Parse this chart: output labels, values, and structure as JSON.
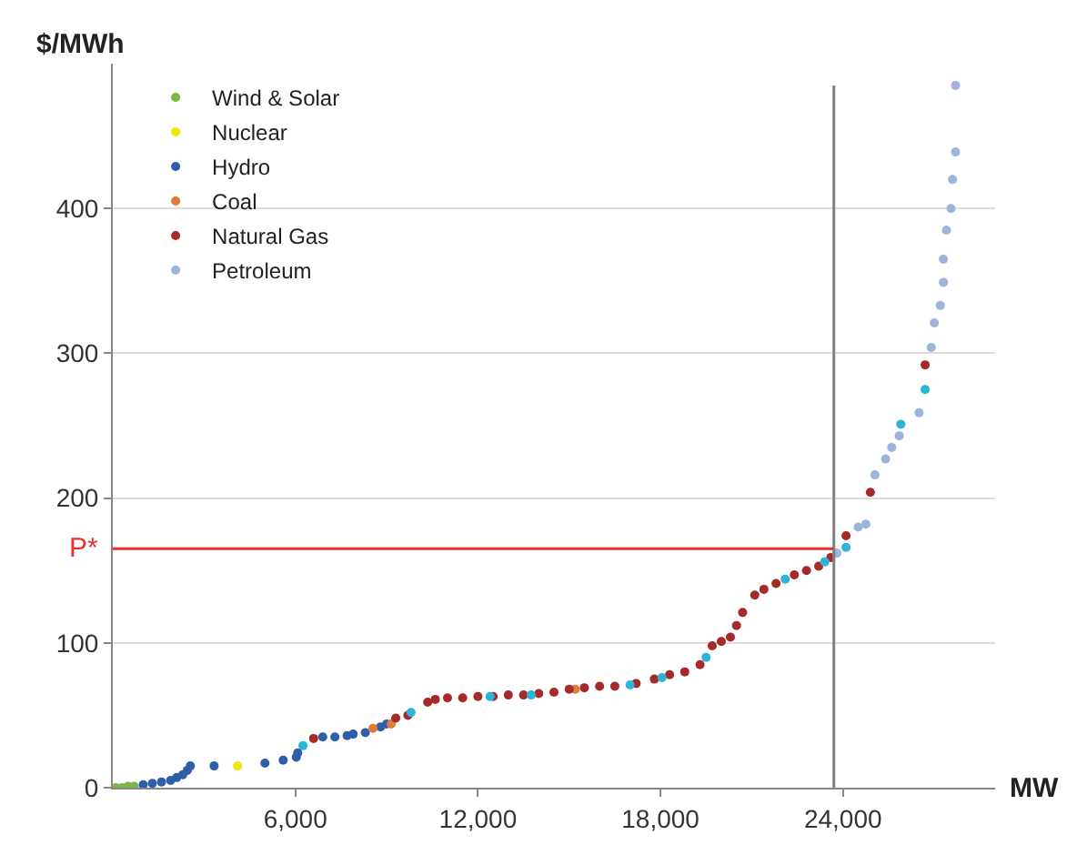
{
  "chart_data": {
    "type": "scatter",
    "xlabel": "MW",
    "ylabel": "$/MWh",
    "xlim": [
      0,
      29000
    ],
    "ylim": [
      0,
      500
    ],
    "xticks": [
      {
        "value": 6000,
        "label": "6,000"
      },
      {
        "value": 12000,
        "label": "12,000"
      },
      {
        "value": 18000,
        "label": "18,000"
      },
      {
        "value": 24000,
        "label": "24,000"
      }
    ],
    "yticks": [
      0,
      100,
      200,
      300,
      400
    ],
    "grid": "y",
    "legend": "top left",
    "marker": "circle",
    "ref_lines": [
      {
        "axis": "x",
        "value": 23700,
        "label": null,
        "color": "#808080"
      },
      {
        "axis": "y",
        "value": 165,
        "label": "P*",
        "color": "#e8302a"
      }
    ],
    "series": [
      {
        "name": "Wind & Solar",
        "color": "#7ab648",
        "x": [
          100,
          300,
          500,
          700
        ],
        "values": [
          0,
          0,
          1,
          1
        ]
      },
      {
        "name": "Nuclear",
        "color": "#f2e600",
        "x": [
          4100
        ],
        "values": [
          15
        ]
      },
      {
        "name": "Hydro",
        "color": "#2e5ea8",
        "x": [
          1000,
          1300,
          1600,
          1900,
          2100,
          2300,
          2450,
          2550,
          3330,
          5000,
          5600,
          6030,
          6080,
          6900,
          7300,
          7700,
          7900,
          8300,
          8800,
          9000
        ],
        "values": [
          2,
          3,
          4,
          5,
          7,
          9,
          12,
          15,
          15,
          17,
          19,
          21,
          24,
          35,
          35,
          36,
          37,
          38,
          42,
          44
        ]
      },
      {
        "name": "Coal",
        "color": "#e07b39",
        "x": [
          8550,
          9150,
          15200
        ],
        "values": [
          41,
          44,
          68
        ]
      },
      {
        "name": "Natural Gas",
        "color": "#a52a2a",
        "x": [
          6600,
          9300,
          9700,
          10350,
          10600,
          11000,
          11500,
          12000,
          12500,
          13000,
          13500,
          14000,
          14500,
          15000,
          15500,
          16000,
          16500,
          17200,
          17800,
          18300,
          18800,
          19300,
          19700,
          20000,
          20300,
          20500,
          20700,
          21100,
          21400,
          21800,
          22400,
          22800,
          23200,
          23600,
          24100,
          24900,
          26700
        ],
        "values": [
          34,
          48,
          50,
          59,
          61,
          62,
          62,
          63,
          63,
          64,
          64,
          65,
          66,
          68,
          69,
          70,
          70,
          72,
          75,
          78,
          80,
          85,
          98,
          101,
          104,
          112,
          121,
          133,
          137,
          141,
          147,
          150,
          153,
          159,
          174,
          204,
          292
        ]
      },
      {
        "name": "Petroleum",
        "color": "#9fb4dd",
        "x": [
          23800,
          24500,
          24750,
          25050,
          25400,
          25600,
          25850,
          26500,
          26900,
          27000,
          27200,
          27300,
          27300,
          27400,
          27550,
          27600,
          27700,
          27700
        ],
        "values": [
          162,
          180,
          182,
          216,
          227,
          235,
          243,
          259,
          304,
          321,
          333,
          349,
          365,
          385,
          400,
          420,
          439,
          485
        ]
      },
      {
        "color": "#2bb5d8",
        "x": [
          6250,
          9800,
          12400,
          13750,
          17000,
          18050,
          19500,
          22100,
          23400,
          24100,
          25900,
          26700
        ],
        "values": [
          29,
          52,
          63,
          64,
          71,
          76,
          90,
          144,
          156,
          166,
          251,
          275
        ]
      }
    ]
  }
}
